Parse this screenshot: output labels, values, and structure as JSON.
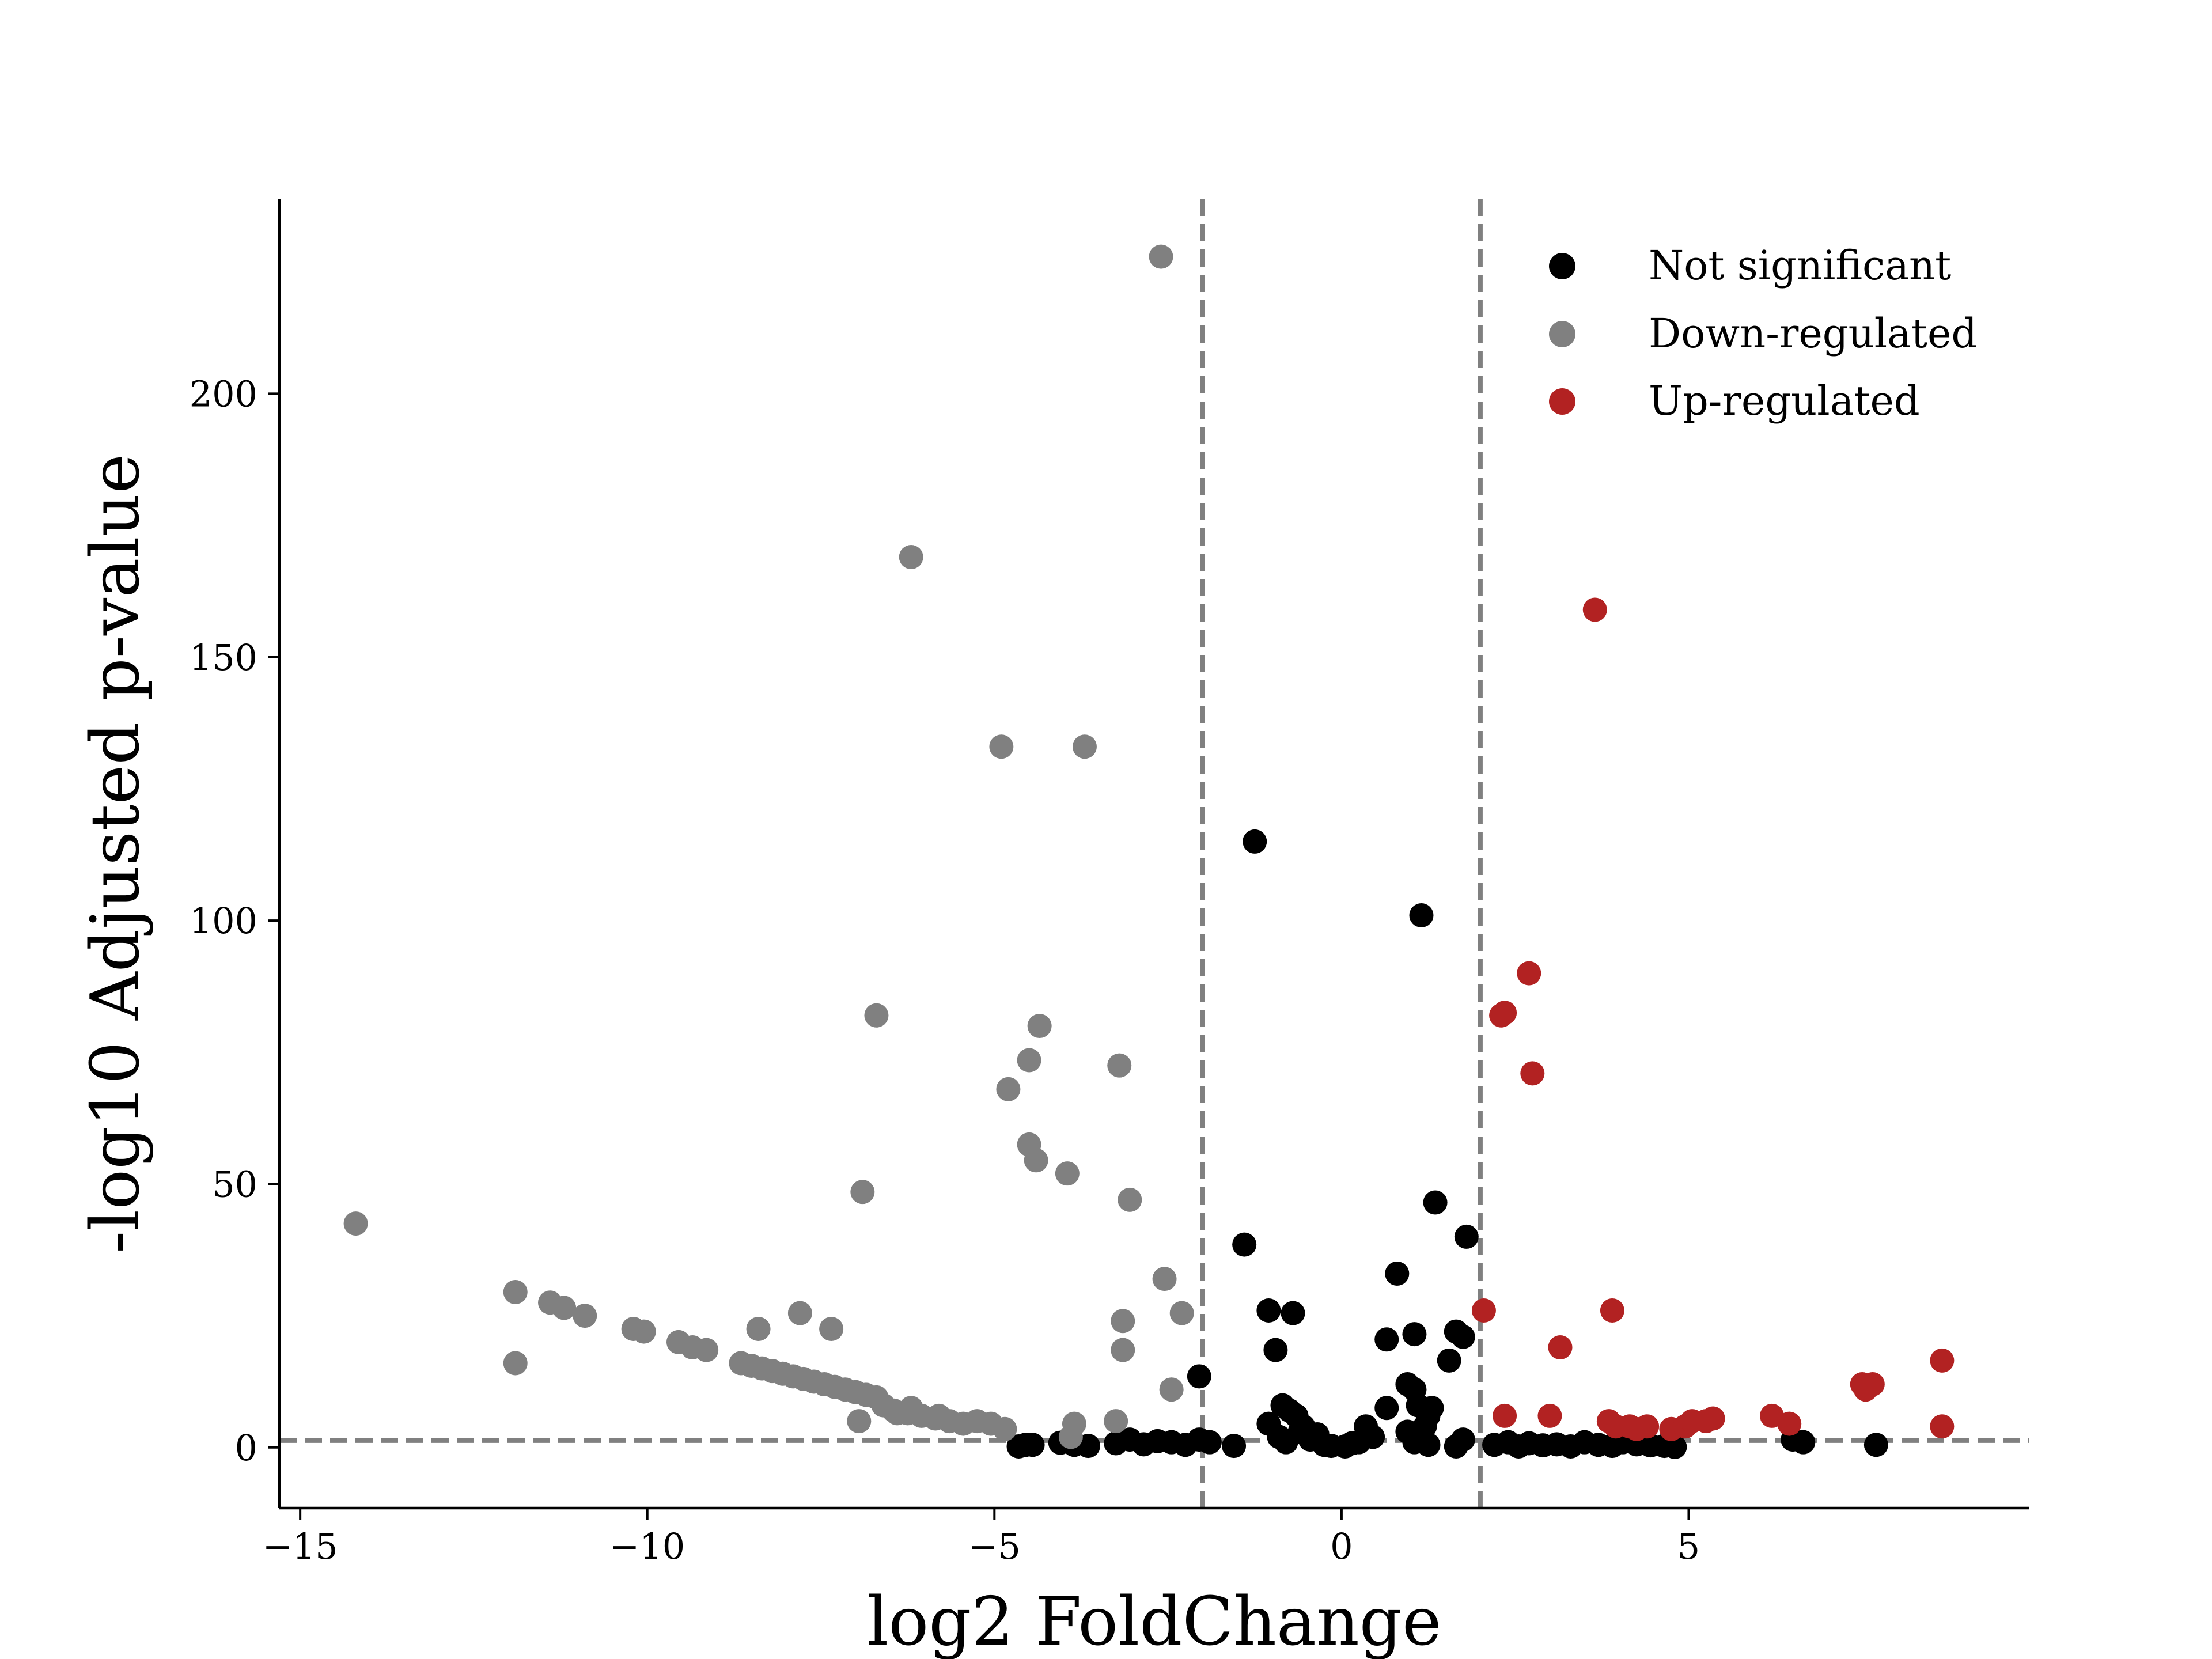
{
  "chart_data": {
    "type": "scatter",
    "title": "",
    "xlabel": "log2 FoldChange",
    "ylabel": "-log10 Adjusted p-value",
    "xlim": [
      -15.3,
      9.9
    ],
    "ylim": [
      -11.5,
      237
    ],
    "xticks": [
      -15,
      -10,
      -5,
      0,
      5
    ],
    "yticks": [
      0,
      50,
      100,
      150,
      200
    ],
    "xtick_labels": [
      "−15",
      "−10",
      "−5",
      "0",
      "5"
    ],
    "ytick_labels": [
      "0",
      "50",
      "100",
      "150",
      "200"
    ],
    "threshold_lines": {
      "vertical": [
        -2,
        2
      ],
      "horizontal": 1.3,
      "color": "#808080"
    },
    "legend_position": "top-right",
    "series": [
      {
        "name": "Not significant",
        "color": "#000000",
        "points": [
          [
            -1.4,
            38.5
          ],
          [
            -1.25,
            115
          ],
          [
            -1.05,
            26
          ],
          [
            -0.95,
            18.5
          ],
          [
            -0.7,
            25.5
          ],
          [
            -0.85,
            8
          ],
          [
            -0.75,
            7
          ],
          [
            -0.65,
            6
          ],
          [
            -0.55,
            4
          ],
          [
            -1.05,
            4.5
          ],
          [
            -0.9,
            2
          ],
          [
            -0.8,
            1
          ],
          [
            -0.6,
            3
          ],
          [
            -0.45,
            1.5
          ],
          [
            -0.35,
            2.5
          ],
          [
            -0.25,
            0.5
          ],
          [
            -0.15,
            0.3
          ],
          [
            0.05,
            0.2
          ],
          [
            0.15,
            0.8
          ],
          [
            0.25,
            1
          ],
          [
            0.35,
            4
          ],
          [
            0.45,
            2
          ],
          [
            0.65,
            7.5
          ],
          [
            0.65,
            20.5
          ],
          [
            0.8,
            33
          ],
          [
            0.95,
            12
          ],
          [
            1.05,
            21.5
          ],
          [
            1.05,
            11
          ],
          [
            1.1,
            8
          ],
          [
            1.15,
            101
          ],
          [
            1.2,
            4
          ],
          [
            1.25,
            6
          ],
          [
            1.3,
            7.5
          ],
          [
            1.35,
            46.5
          ],
          [
            1.55,
            16.5
          ],
          [
            1.65,
            22
          ],
          [
            1.75,
            21
          ],
          [
            1.8,
            40
          ],
          [
            0.95,
            3
          ],
          [
            1.05,
            1
          ],
          [
            1.25,
            0.5
          ],
          [
            1.65,
            0.2
          ],
          [
            1.75,
            1.5
          ],
          [
            -2.05,
            13.5
          ],
          [
            -2.05,
            1.5
          ],
          [
            -2.25,
            0.5
          ],
          [
            -2.45,
            1
          ],
          [
            -2.65,
            1.2
          ],
          [
            -2.85,
            0.6
          ],
          [
            -3.05,
            1.5
          ],
          [
            -3.25,
            0.8
          ],
          [
            -3.65,
            0.3
          ],
          [
            -3.85,
            0.5
          ],
          [
            -4.05,
            0.9
          ],
          [
            -4.45,
            0.5
          ],
          [
            -4.65,
            0.2
          ],
          [
            -4.55,
            0.5
          ],
          [
            -1.9,
            1
          ],
          [
            -1.55,
            0.3
          ],
          [
            2.2,
            0.5
          ],
          [
            2.4,
            1
          ],
          [
            2.55,
            0.2
          ],
          [
            2.7,
            0.8
          ],
          [
            2.9,
            0.4
          ],
          [
            3.1,
            0.6
          ],
          [
            3.3,
            0.2
          ],
          [
            3.5,
            1
          ],
          [
            3.7,
            0.5
          ],
          [
            3.9,
            0.3
          ],
          [
            4.05,
            1
          ],
          [
            4.25,
            0.6
          ],
          [
            4.45,
            0.4
          ],
          [
            4.65,
            0.3
          ],
          [
            4.8,
            0.1
          ],
          [
            6.5,
            1.5
          ],
          [
            6.65,
            1
          ],
          [
            7.7,
            0.5
          ]
        ]
      },
      {
        "name": "Down-regulated",
        "color": "#808080",
        "points": [
          [
            -14.2,
            42.5
          ],
          [
            -11.9,
            29.5
          ],
          [
            -11.9,
            16
          ],
          [
            -11.4,
            27.5
          ],
          [
            -11.2,
            26.5
          ],
          [
            -10.9,
            25
          ],
          [
            -10.2,
            22.5
          ],
          [
            -10.05,
            22
          ],
          [
            -9.55,
            20
          ],
          [
            -9.35,
            19
          ],
          [
            -9.15,
            18.5
          ],
          [
            -8.65,
            16
          ],
          [
            -8.5,
            15.5
          ],
          [
            -8.35,
            15
          ],
          [
            -8.2,
            14.5
          ],
          [
            -8.05,
            14
          ],
          [
            -7.9,
            13.5
          ],
          [
            -7.75,
            13
          ],
          [
            -7.6,
            12.5
          ],
          [
            -7.45,
            12
          ],
          [
            -7.3,
            11.5
          ],
          [
            -7.15,
            11
          ],
          [
            -7.0,
            10.5
          ],
          [
            -6.85,
            10
          ],
          [
            -6.7,
            9.5
          ],
          [
            -6.6,
            8
          ],
          [
            -6.45,
            7
          ],
          [
            -6.25,
            6.5
          ],
          [
            -6.05,
            6
          ],
          [
            -5.85,
            5.5
          ],
          [
            -5.65,
            5
          ],
          [
            -5.45,
            4.5
          ],
          [
            -5.25,
            5
          ],
          [
            -5.05,
            4.5
          ],
          [
            -4.85,
            3.5
          ],
          [
            -8.4,
            22.5
          ],
          [
            -7.8,
            25.5
          ],
          [
            -7.35,
            22.5
          ],
          [
            -6.95,
            5
          ],
          [
            -6.9,
            48.5
          ],
          [
            -6.7,
            82
          ],
          [
            -6.2,
            169
          ],
          [
            -4.9,
            133
          ],
          [
            -4.8,
            68
          ],
          [
            -4.5,
            57.5
          ],
          [
            -4.5,
            73.5
          ],
          [
            -4.4,
            54.5
          ],
          [
            -4.35,
            80
          ],
          [
            -3.95,
            52
          ],
          [
            -3.9,
            2
          ],
          [
            -3.85,
            4.5
          ],
          [
            -3.7,
            133
          ],
          [
            -3.25,
            5
          ],
          [
            -3.2,
            72.5
          ],
          [
            -3.15,
            24
          ],
          [
            -3.15,
            18.5
          ],
          [
            -3.05,
            47
          ],
          [
            -2.6,
            226
          ],
          [
            -2.55,
            32
          ],
          [
            -2.45,
            11
          ],
          [
            -2.3,
            25.5
          ],
          [
            -6.4,
            6.5
          ],
          [
            -6.2,
            7.5
          ],
          [
            -5.8,
            6
          ]
        ]
      },
      {
        "name": "Up-regulated",
        "color": "#b22222",
        "points": [
          [
            2.05,
            26
          ],
          [
            2.3,
            82
          ],
          [
            2.35,
            82.5
          ],
          [
            2.35,
            6
          ],
          [
            2.7,
            90
          ],
          [
            2.75,
            71
          ],
          [
            3.0,
            6
          ],
          [
            3.15,
            19
          ],
          [
            3.65,
            159
          ],
          [
            3.85,
            5
          ],
          [
            3.9,
            26
          ],
          [
            3.95,
            4
          ],
          [
            4.15,
            4
          ],
          [
            4.25,
            3.5
          ],
          [
            4.4,
            4
          ],
          [
            4.75,
            3.5
          ],
          [
            4.95,
            4
          ],
          [
            5.05,
            5
          ],
          [
            5.25,
            5
          ],
          [
            5.35,
            5.5
          ],
          [
            6.2,
            6
          ],
          [
            6.45,
            4.5
          ],
          [
            7.5,
            12
          ],
          [
            7.55,
            11
          ],
          [
            7.65,
            12
          ],
          [
            8.65,
            16.5
          ],
          [
            8.65,
            4
          ]
        ]
      }
    ]
  }
}
